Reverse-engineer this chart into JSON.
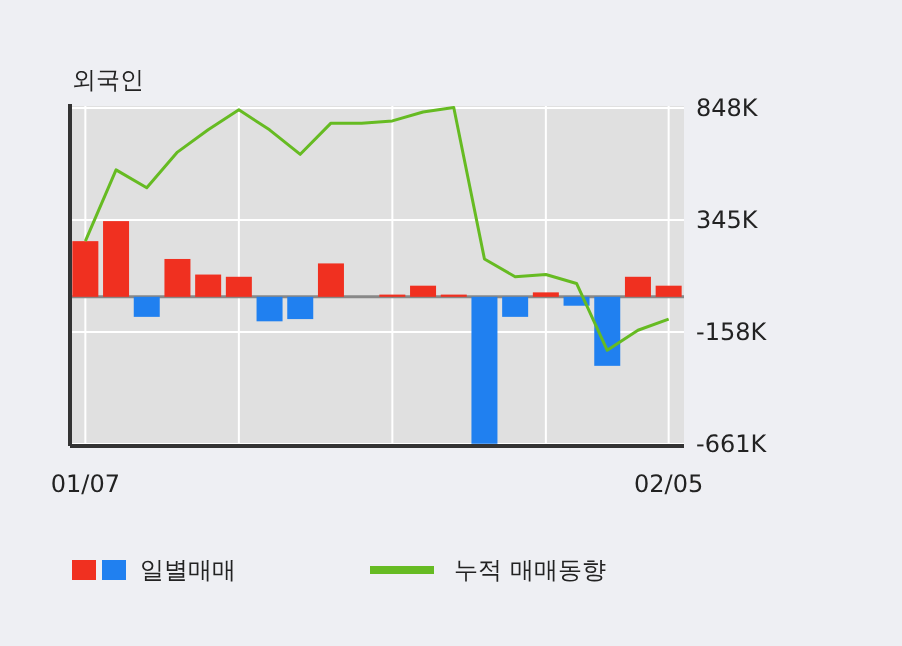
{
  "chart_data": {
    "type": "bar",
    "title": "외국인",
    "categories": [
      "01/07",
      null,
      null,
      null,
      null,
      null,
      null,
      null,
      null,
      null,
      null,
      null,
      null,
      null,
      null,
      null,
      null,
      null,
      null,
      "02/05"
    ],
    "series": [
      {
        "name": "일별매매",
        "colors": [
          "#f03020",
          "#f03020",
          "#2080f0",
          "#f03020",
          "#f03020",
          "#f03020",
          "#2080f0",
          "#2080f0",
          "#f03020",
          "#f03020",
          "#f03020",
          "#f03020",
          "#f03020",
          "#2080f0",
          "#2080f0",
          "#f03020",
          "#2080f0",
          "#2080f0",
          "#f03020",
          "#f03020"
        ],
        "values": [
          250,
          340,
          -90,
          170,
          100,
          90,
          -110,
          -100,
          150,
          0,
          10,
          50,
          10,
          -660,
          -90,
          20,
          -40,
          -310,
          90,
          50
        ]
      },
      {
        "type": "line",
        "name": "누적 매매동향",
        "color": "#66bb22",
        "values": [
          250,
          570,
          490,
          650,
          750,
          840,
          750,
          640,
          780,
          780,
          790,
          830,
          850,
          170,
          90,
          100,
          60,
          -240,
          -150,
          -100
        ]
      }
    ],
    "ylim": [
      -670,
      857
    ],
    "yticks": [
      {
        "value": 848,
        "label": "848K"
      },
      {
        "value": 345,
        "label": "345K"
      },
      {
        "value": -158,
        "label": "-158K"
      },
      {
        "value": -661,
        "label": "-661K"
      }
    ],
    "grid": true,
    "legend": "bottom"
  }
}
